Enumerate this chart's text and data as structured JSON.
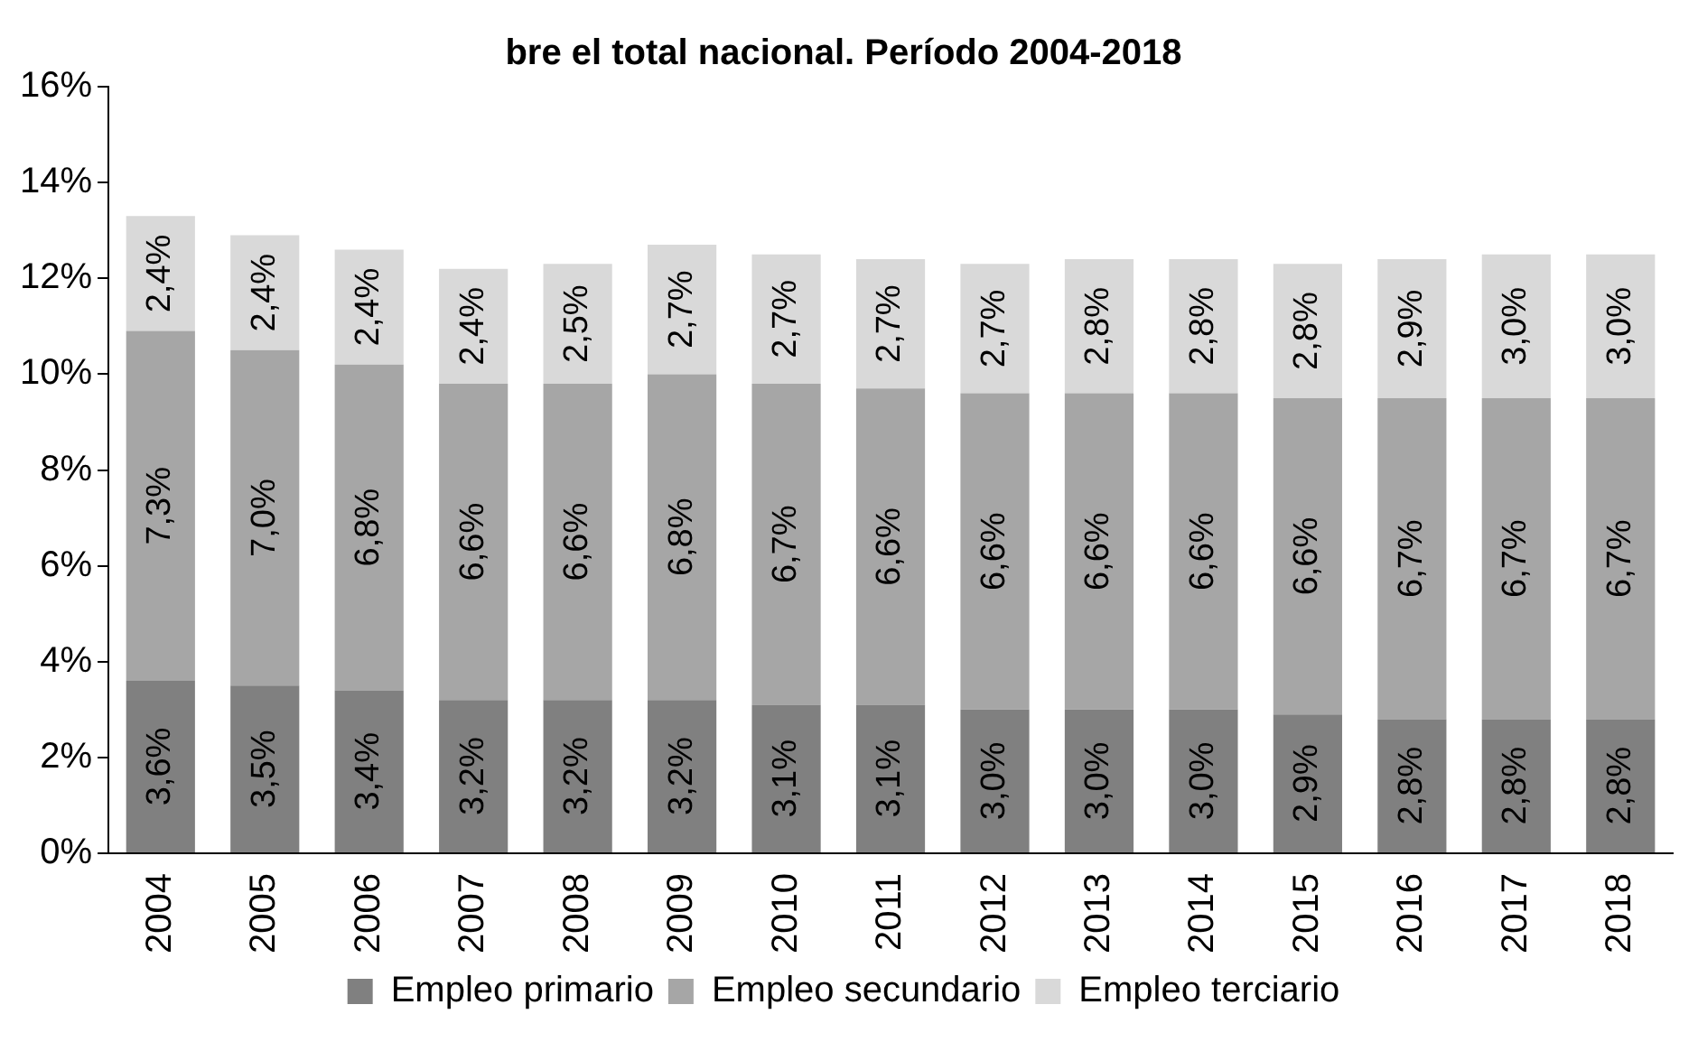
{
  "chart_data": {
    "type": "bar",
    "title": "bre el total nacional. Período 2004-2018",
    "stacked": true,
    "legend": "bottom",
    "grid": false,
    "categories": [
      "2004",
      "2005",
      "2006",
      "2007",
      "2008",
      "2009",
      "2010",
      "2011",
      "2012",
      "2013",
      "2014",
      "2015",
      "2016",
      "2017",
      "2018"
    ],
    "ylim": [
      0,
      16
    ],
    "yticks": [
      {
        "value": 0,
        "label": "0%"
      },
      {
        "value": 2,
        "label": "2%"
      },
      {
        "value": 4,
        "label": "4%"
      },
      {
        "value": 6,
        "label": "6%"
      },
      {
        "value": 8,
        "label": "8%"
      },
      {
        "value": 10,
        "label": "10%"
      },
      {
        "value": 12,
        "label": "12%"
      },
      {
        "value": 14,
        "label": "14%"
      },
      {
        "value": 16,
        "label": "16%"
      }
    ],
    "series": [
      {
        "name": "Empleo primario",
        "color": "#808080",
        "values": [
          3.6,
          3.5,
          3.4,
          3.2,
          3.2,
          3.2,
          3.1,
          3.1,
          3.0,
          3.0,
          3.0,
          2.9,
          2.8,
          2.8,
          2.8
        ],
        "value_labels": [
          "3,6%",
          "3,5%",
          "3,4%",
          "3,2%",
          "3,2%",
          "3,2%",
          "3,1%",
          "3,1%",
          "3,0%",
          "3,0%",
          "3,0%",
          "2,9%",
          "2,8%",
          "2,8%",
          "2,8%"
        ]
      },
      {
        "name": "Empleo secundario",
        "color": "#a6a6a6",
        "values": [
          7.3,
          7.0,
          6.8,
          6.6,
          6.6,
          6.8,
          6.7,
          6.6,
          6.6,
          6.6,
          6.6,
          6.6,
          6.7,
          6.7,
          6.7
        ],
        "value_labels": [
          "7,3%",
          "7,0%",
          "6,8%",
          "6,6%",
          "6,6%",
          "6,8%",
          "6,7%",
          "6,6%",
          "6,6%",
          "6,6%",
          "6,6%",
          "6,6%",
          "6,7%",
          "6,7%",
          "6,7%"
        ]
      },
      {
        "name": "Empleo terciario",
        "color": "#d9d9d9",
        "values": [
          2.4,
          2.4,
          2.4,
          2.4,
          2.5,
          2.7,
          2.7,
          2.7,
          2.7,
          2.8,
          2.8,
          2.8,
          2.9,
          3.0,
          3.0
        ],
        "value_labels": [
          "2,4%",
          "2,4%",
          "2,4%",
          "2,4%",
          "2,5%",
          "2,7%",
          "2,7%",
          "2,7%",
          "2,7%",
          "2,8%",
          "2,8%",
          "2,8%",
          "2,9%",
          "3,0%",
          "3,0%"
        ]
      }
    ]
  }
}
